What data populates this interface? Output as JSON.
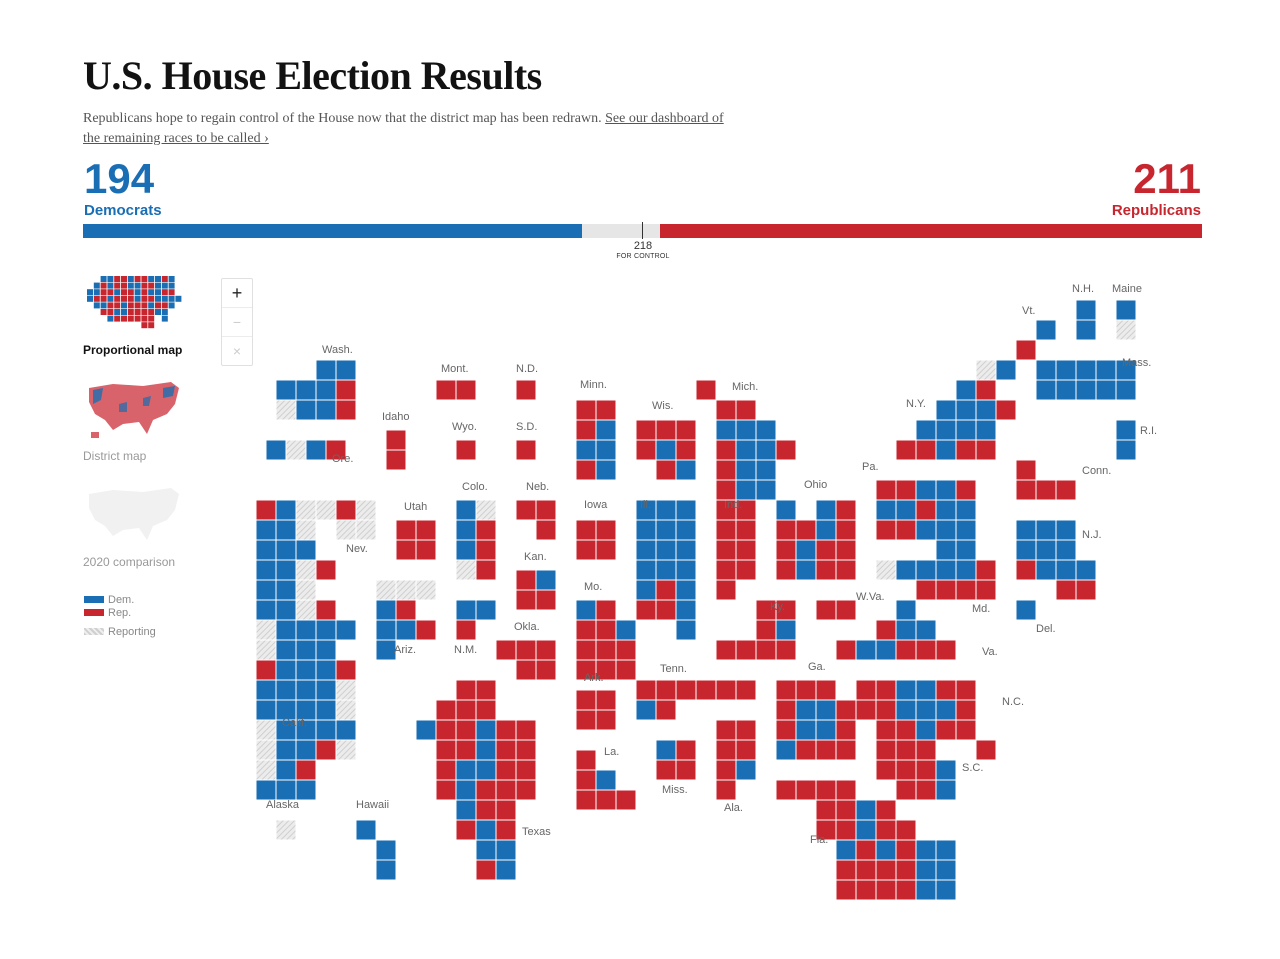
{
  "header": {
    "title": "U.S. House Election Results",
    "subtitle": "Republicans hope to regain control of the House now that the district map has been redrawn.",
    "link_text": "See our dashboard of the remaining races to be called ›"
  },
  "tally": {
    "dem_count": "194",
    "dem_label": "Democrats",
    "rep_count": "211",
    "rep_label": "Republicans",
    "control_number": "218",
    "control_label": "FOR CONTROL",
    "total_seats": 435,
    "dem_value": 194,
    "rep_value": 211
  },
  "views": [
    {
      "label": "Proportional map",
      "active": true
    },
    {
      "label": "District map",
      "active": false
    },
    {
      "label": "2020 comparison",
      "active": false
    }
  ],
  "legend": [
    {
      "label": "Dem.",
      "color": "#1a6eb3"
    },
    {
      "label": "Rep.",
      "color": "#c7262f"
    },
    {
      "label": "Reporting",
      "color": "#dddddd"
    }
  ],
  "zoom": {
    "in": "+",
    "out": "−",
    "reset": "×"
  },
  "colors": {
    "dem": "#1a6eb3",
    "rep": "#c7262f",
    "reporting": "#dddddd",
    "label": "#666666"
  },
  "map": {
    "state_labels": [
      "Wash.",
      "Ore.",
      "Calif.",
      "Nev.",
      "Idaho",
      "Mont.",
      "Wyo.",
      "Utah",
      "Colo.",
      "Ariz.",
      "N.M.",
      "N.D.",
      "S.D.",
      "Neb.",
      "Kan.",
      "Okla.",
      "Texas",
      "Minn.",
      "Iowa",
      "Mo.",
      "Ark.",
      "La.",
      "Wis.",
      "Ill.",
      "Mich.",
      "Ind.",
      "Ohio",
      "Ky.",
      "Tenn.",
      "Miss.",
      "Ala.",
      "Ga.",
      "Fla.",
      "S.C.",
      "N.C.",
      "Va.",
      "W.Va.",
      "Pa.",
      "N.Y.",
      "Vt.",
      "N.H.",
      "Maine",
      "Mass.",
      "R.I.",
      "Conn.",
      "N.J.",
      "Del.",
      "Md.",
      "Alaska",
      "Hawaii"
    ],
    "states": [
      {
        "name": "Wash.",
        "rows": [
          "..DD",
          "DDDR",
          "-DDR"
        ]
      },
      {
        "name": "Ore.",
        "rows": [
          "D-DR"
        ]
      },
      {
        "name": "Calif.",
        "rows": [
          "RD--",
          "DD-",
          "DDD",
          "DD-R",
          "DD-",
          "DD-R",
          "-DDDD",
          "-DDD",
          "RDDDR",
          "DDDD-",
          "DDDD-",
          "-DDDD",
          "-DDR-",
          "-DR",
          "DDD"
        ]
      },
      {
        "name": "Nev.",
        "rows": [
          "R-",
          "--"
        ]
      },
      {
        "name": "Idaho",
        "rows": [
          "R",
          "R"
        ]
      },
      {
        "name": "Mont.",
        "rows": [
          "RR"
        ]
      },
      {
        "name": "Wyo.",
        "rows": [
          "R"
        ]
      },
      {
        "name": "Utah",
        "rows": [
          "RR",
          "RR"
        ]
      },
      {
        "name": "Colo.",
        "rows": [
          "D-",
          "DR",
          "DR",
          "-R"
        ]
      },
      {
        "name": "Ariz.",
        "rows": [
          "---",
          "DR",
          "DDR",
          "D"
        ]
      },
      {
        "name": "N.M.",
        "rows": [
          "DD",
          "R"
        ]
      },
      {
        "name": "N.D.",
        "rows": [
          "R"
        ]
      },
      {
        "name": "S.D.",
        "rows": [
          "R"
        ]
      },
      {
        "name": "Neb.",
        "rows": [
          "RR",
          ".R"
        ]
      },
      {
        "name": "Kan.",
        "rows": [
          "RD",
          "RR"
        ]
      },
      {
        "name": "Okla.",
        "rows": [
          "RRR",
          ".RR"
        ]
      },
      {
        "name": "Texas",
        "rows": [
          "..RR",
          ".RRR",
          "DRRDRR",
          ".RRDRR",
          ".RDDRR",
          ".RDRRR",
          "..DRR",
          "..RDR",
          "...DD",
          "...RD"
        ]
      },
      {
        "name": "Minn.",
        "rows": [
          "RR",
          "RD",
          "DD",
          "RD"
        ]
      },
      {
        "name": "Iowa",
        "rows": [
          "RR",
          "RR"
        ]
      },
      {
        "name": "Mo.",
        "rows": [
          "DR",
          "RRD",
          "RRR",
          "RRR"
        ]
      },
      {
        "name": "Ark.",
        "rows": [
          "RR",
          "RR"
        ]
      },
      {
        "name": "La.",
        "rows": [
          "R",
          "RD",
          "RRR"
        ]
      },
      {
        "name": "Wis.",
        "rows": [
          "RRR",
          "RDR",
          ".RD"
        ]
      },
      {
        "name": "Ill.",
        "rows": [
          "DDD",
          "DDD",
          "DDD",
          "DDD",
          "DRD",
          "RRD",
          "..D"
        ]
      },
      {
        "name": "Mich.",
        "rows": [
          "R",
          ".RR",
          ".DDD",
          ".RDDR",
          ".RDD",
          ".RDD"
        ]
      },
      {
        "name": "Ind.",
        "rows": [
          "RR",
          "RR",
          "RR",
          "RR",
          "R"
        ]
      },
      {
        "name": "Ohio",
        "rows": [
          "D.DR",
          "RRDR",
          "RDRR",
          "RDRR"
        ]
      },
      {
        "name": "Ky.",
        "rows": [
          "..RR",
          "..RD",
          "RRRR"
        ]
      },
      {
        "name": "Tenn.",
        "rows": [
          "RRRRRR",
          "DR"
        ]
      },
      {
        "name": "Miss.",
        "rows": [
          "DR",
          "RR"
        ]
      },
      {
        "name": "Ala.",
        "rows": [
          "RR",
          "RR",
          "RD",
          "R"
        ]
      },
      {
        "name": "Ga.",
        "rows": [
          "RRR",
          "RDDR",
          "RDDR",
          "DRRR"
        ]
      },
      {
        "name": "Fla.",
        "rows": [
          "RRRR",
          "..RRDR",
          "..RRDRR",
          "...DRDRDD",
          "...RRRRDD",
          "...RRRRDD"
        ]
      },
      {
        "name": "S.C.",
        "rows": [
          "RRR",
          "RRRD",
          ".RRD"
        ]
      },
      {
        "name": "N.C.",
        "rows": [
          "RRDDRR",
          "RRDDDR",
          ".RRDRR",
          "......R"
        ]
      },
      {
        "name": "Va.",
        "rows": [
          "...D",
          "..RDD",
          "RDDRRR"
        ]
      },
      {
        "name": "W.Va.",
        "rows": [
          "RR"
        ]
      },
      {
        "name": "Pa.",
        "rows": [
          "RRDDR",
          "DDRDD",
          "RRDDD",
          "...DD"
        ]
      },
      {
        "name": "N.Y.",
        "rows": [
          "......R",
          "....-D",
          "...DR",
          "..DDDR",
          ".DDDD",
          "RRDRR"
        ]
      },
      {
        "name": "Vt.",
        "rows": [
          "D"
        ]
      },
      {
        "name": "N.H.",
        "rows": [
          "D",
          "D"
        ]
      },
      {
        "name": "Maine",
        "rows": [
          "D",
          "-"
        ]
      },
      {
        "name": "Mass.",
        "rows": [
          "DDDDD",
          "DDDDD"
        ]
      },
      {
        "name": "R.I.",
        "rows": [
          "D",
          "D"
        ]
      },
      {
        "name": "Conn.",
        "rows": [
          "R",
          "RRR"
        ]
      },
      {
        "name": "N.J.",
        "rows": [
          "DDD",
          "DDD",
          "RDDD",
          "..RR"
        ]
      },
      {
        "name": "Del.",
        "rows": [
          "D"
        ]
      },
      {
        "name": "Md.",
        "rows": [
          "-DDDDR",
          "..RRRR"
        ]
      },
      {
        "name": "Alaska",
        "rows": [
          "-"
        ]
      },
      {
        "name": "Hawaii",
        "rows": [
          "D",
          ".D",
          ".D"
        ]
      }
    ]
  }
}
